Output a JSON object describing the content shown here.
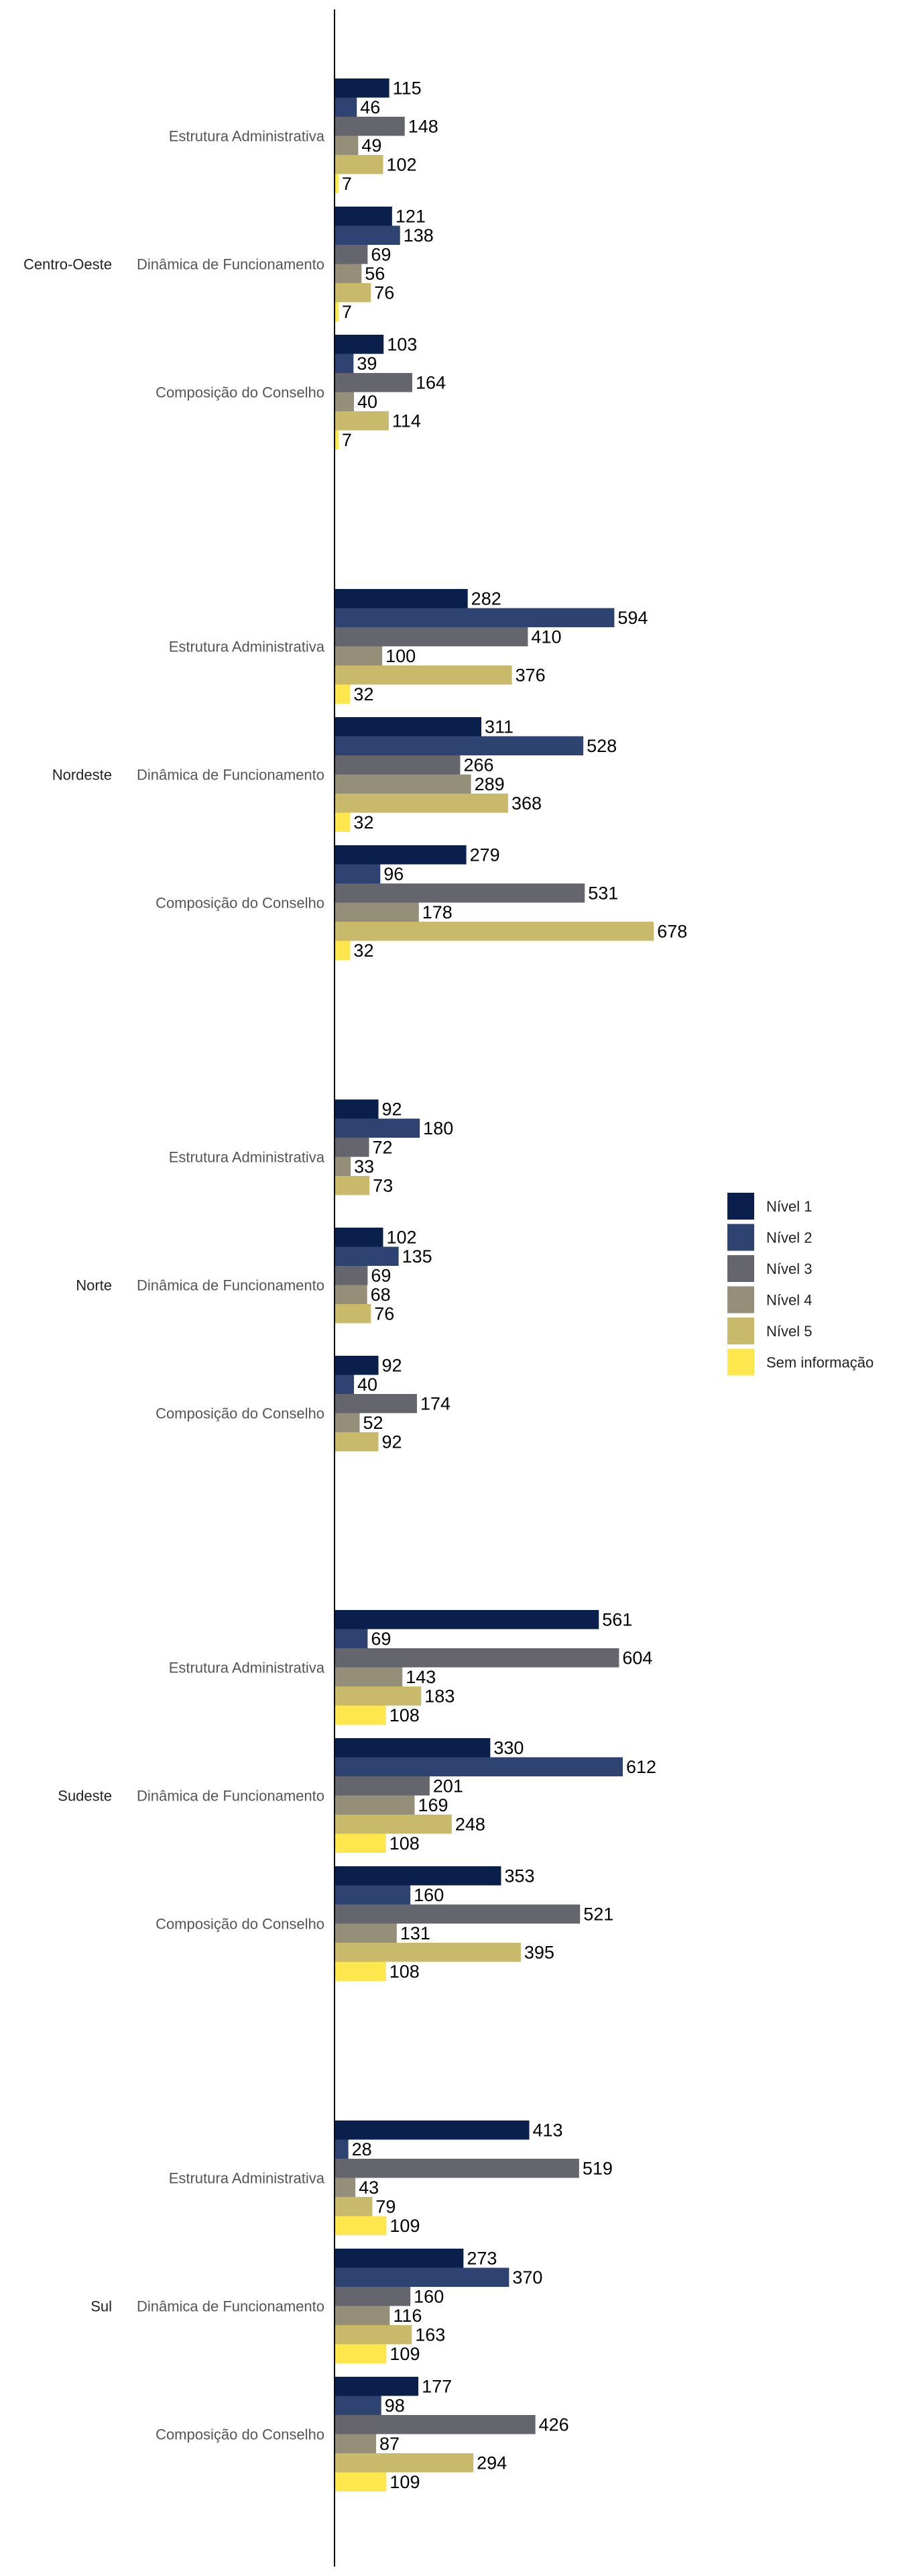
{
  "chart_data": {
    "type": "bar",
    "orientation": "horizontal",
    "title": "",
    "xlabel": "",
    "ylabel": "",
    "xlim": [
      0,
      700
    ],
    "grid": false,
    "legend_position": "right",
    "categories": [
      "Estrutura Administrativa",
      "Dinâmica de Funcionamento",
      "Composição do Conselho"
    ],
    "groups": [
      "Centro-Oeste",
      "Nordeste",
      "Norte",
      "Sudeste",
      "Sul"
    ],
    "series": [
      {
        "name": "Nível 1",
        "color": "#0b1f4d",
        "values": [
          [
            115,
            121,
            103
          ],
          [
            282,
            311,
            279
          ],
          [
            92,
            102,
            92
          ],
          [
            561,
            330,
            353
          ],
          [
            413,
            273,
            177
          ]
        ]
      },
      {
        "name": "Nível 2",
        "color": "#2e4371",
        "values": [
          [
            46,
            138,
            39
          ],
          [
            594,
            528,
            96
          ],
          [
            180,
            135,
            40
          ],
          [
            69,
            612,
            160
          ],
          [
            28,
            370,
            98
          ]
        ]
      },
      {
        "name": "Nível 3",
        "color": "#65666d",
        "values": [
          [
            148,
            69,
            164
          ],
          [
            410,
            266,
            531
          ],
          [
            72,
            69,
            174
          ],
          [
            604,
            201,
            521
          ],
          [
            519,
            160,
            426
          ]
        ]
      },
      {
        "name": "Nível 4",
        "color": "#958f7a",
        "values": [
          [
            49,
            56,
            40
          ],
          [
            100,
            289,
            178
          ],
          [
            33,
            68,
            52
          ],
          [
            143,
            169,
            131
          ],
          [
            43,
            116,
            87
          ]
        ]
      },
      {
        "name": "Nível 5",
        "color": "#c9b96a",
        "values": [
          [
            102,
            76,
            114
          ],
          [
            376,
            368,
            678
          ],
          [
            73,
            76,
            92
          ],
          [
            183,
            248,
            395
          ],
          [
            79,
            163,
            294
          ]
        ]
      },
      {
        "name": "Sem informação",
        "color": "#fde74c",
        "values": [
          [
            7,
            7,
            7
          ],
          [
            32,
            32,
            32
          ],
          [
            null,
            null,
            null
          ],
          [
            108,
            108,
            108
          ],
          [
            109,
            109,
            109
          ]
        ]
      }
    ]
  }
}
